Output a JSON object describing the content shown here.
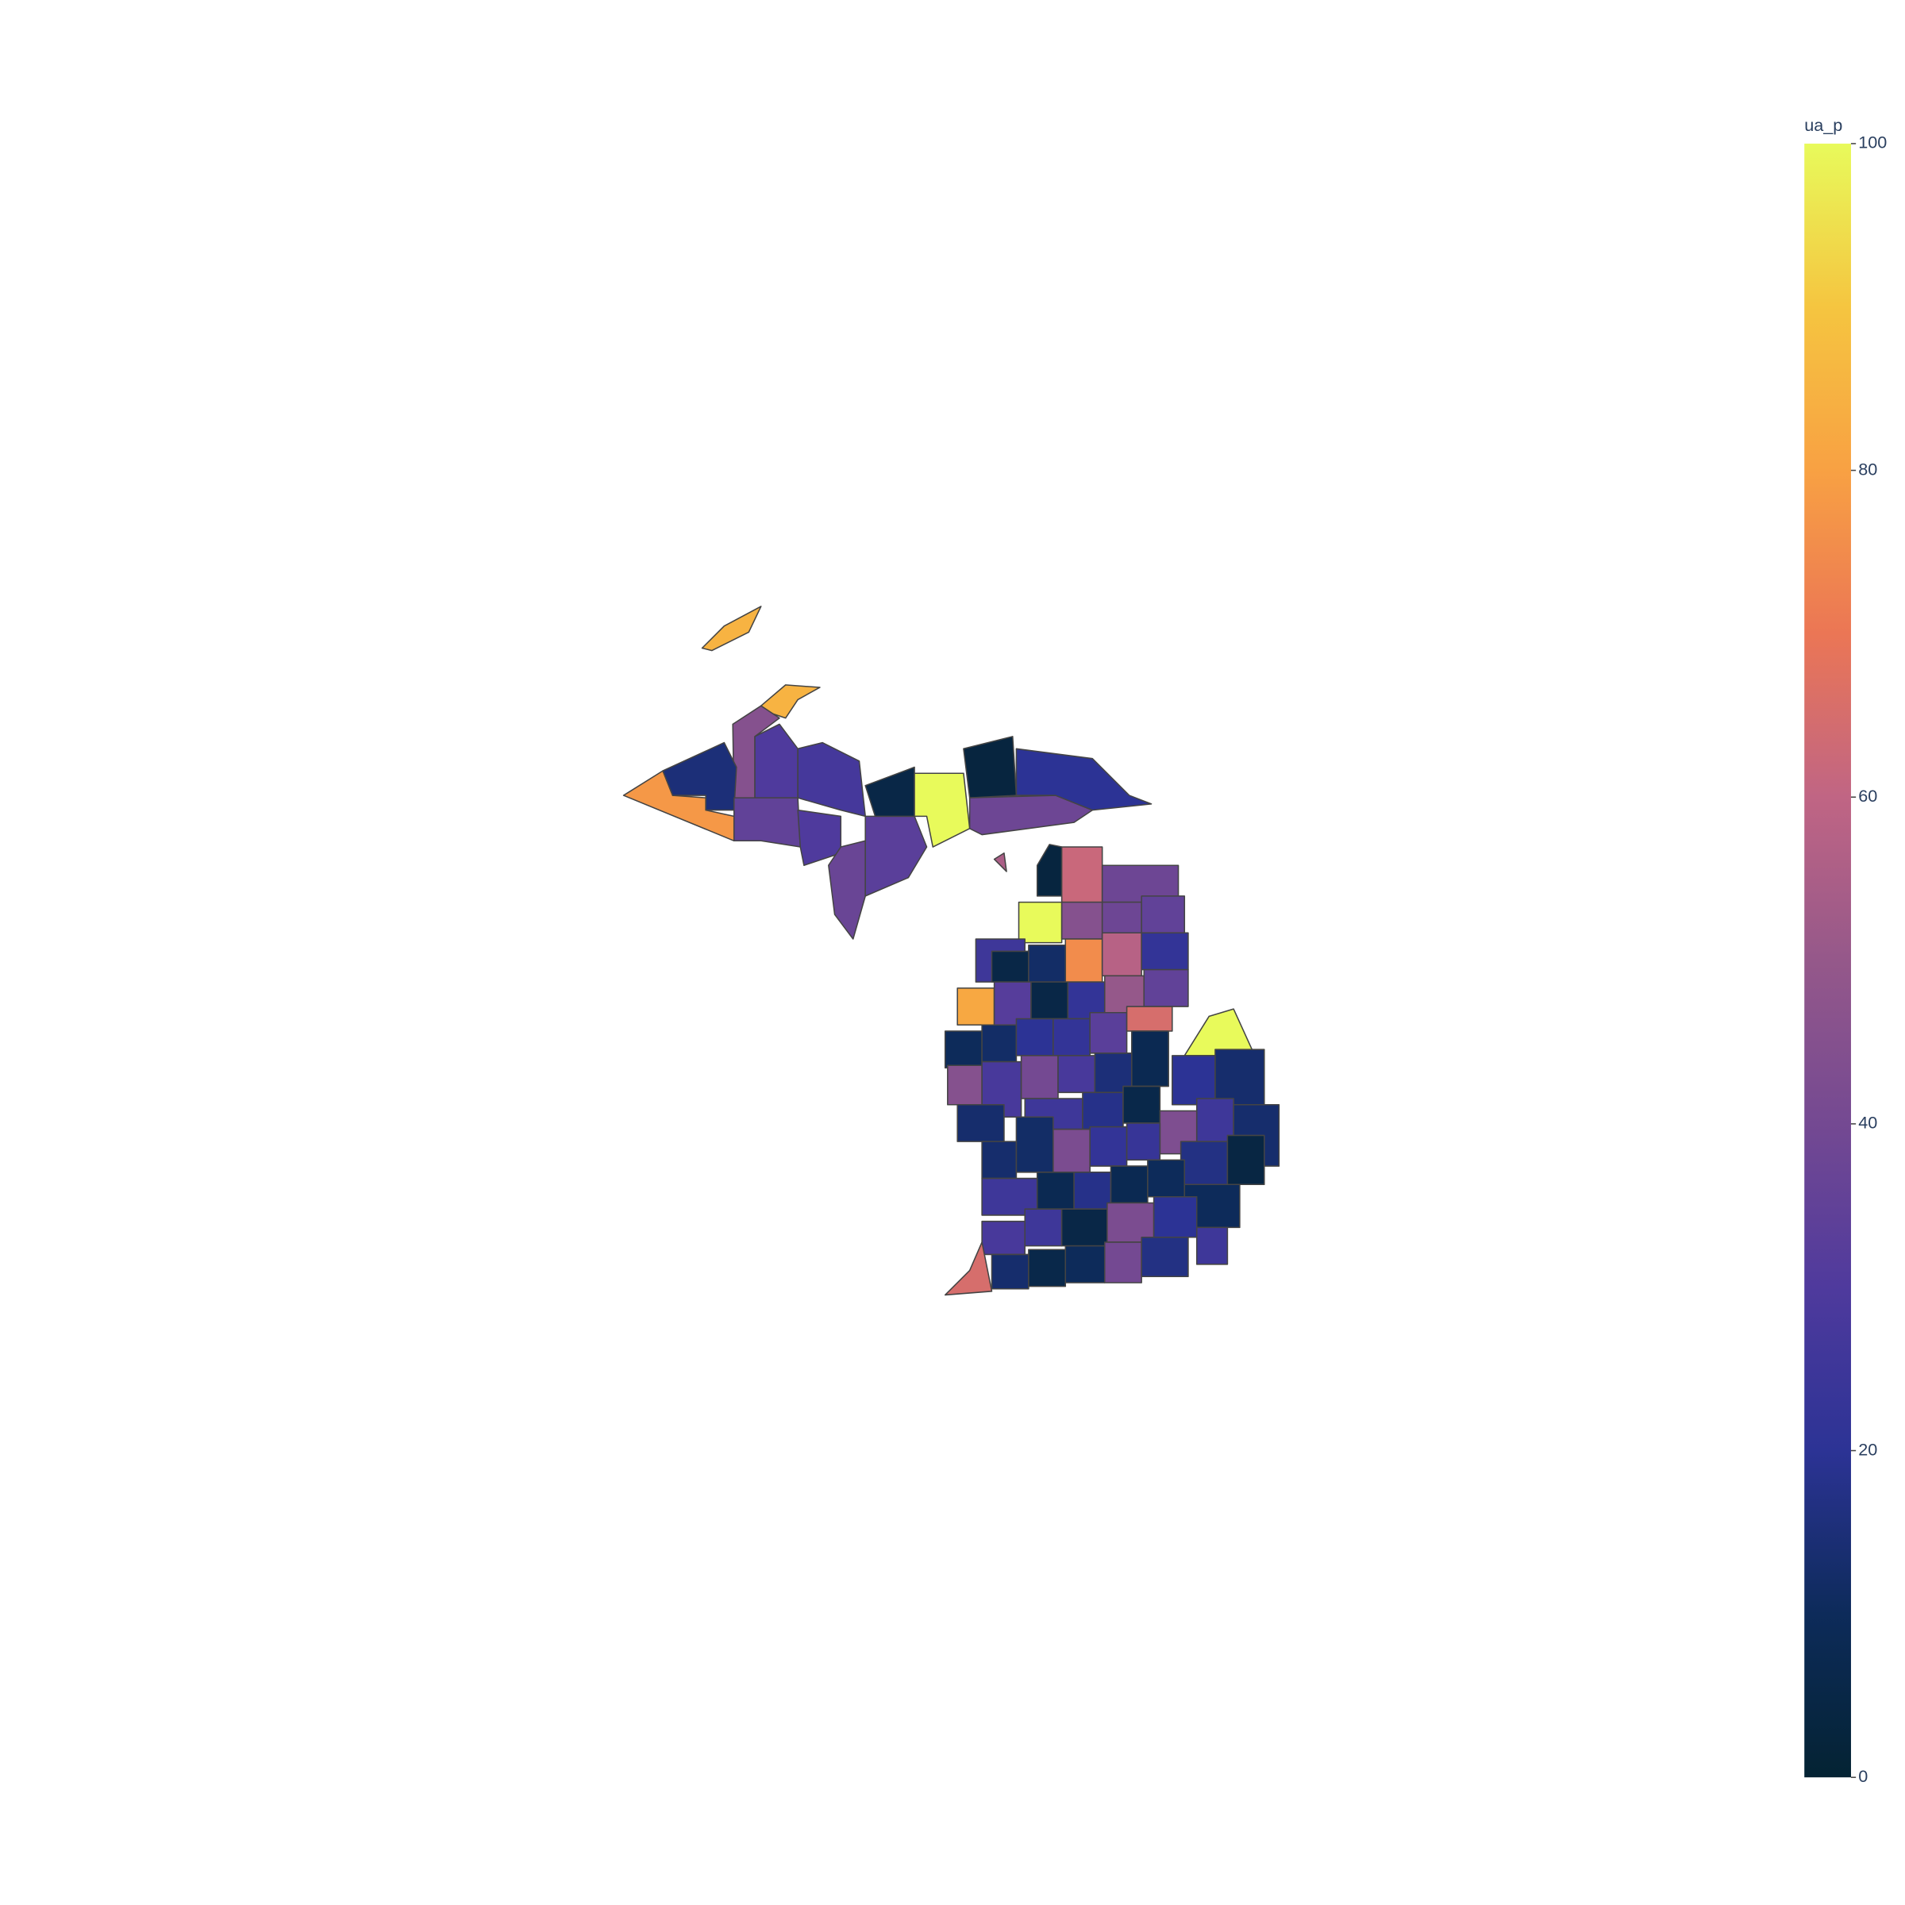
{
  "chart_data": {
    "type": "choropleth",
    "colorbar_title": "ua_p",
    "clim": [
      0,
      100
    ],
    "cticks": [
      0,
      20,
      40,
      60,
      80,
      100
    ],
    "colorscale": [
      [
        0,
        "#042333"
      ],
      [
        0.1,
        "#0d2b5a"
      ],
      [
        0.2,
        "#2c3395"
      ],
      [
        0.3,
        "#4f3a9d"
      ],
      [
        0.4,
        "#744992"
      ],
      [
        0.5,
        "#95588a"
      ],
      [
        0.6,
        "#c06584"
      ],
      [
        0.7,
        "#eb7655"
      ],
      [
        0.8,
        "#f8a143"
      ],
      [
        0.9,
        "#f5c540"
      ],
      [
        1,
        "#e8fa5b"
      ]
    ],
    "values": [
      85,
      85,
      45,
      78,
      15,
      30,
      27,
      35,
      30,
      37,
      33,
      5,
      100,
      3,
      38,
      20,
      55,
      3,
      62,
      38,
      100,
      45,
      38,
      35,
      25,
      5,
      12,
      75,
      58,
      22,
      82,
      32,
      5,
      22,
      50,
      35,
      10,
      12,
      20,
      22,
      33,
      65,
      100,
      45,
      28,
      40,
      28,
      15,
      8,
      20,
      13,
      13,
      25,
      18,
      6,
      43,
      25,
      13,
      13,
      12,
      42,
      22,
      23,
      17,
      4,
      25,
      8,
      18,
      8,
      10,
      10,
      28,
      25,
      5,
      42,
      20,
      25,
      65,
      13,
      6,
      10,
      40,
      17
    ]
  }
}
